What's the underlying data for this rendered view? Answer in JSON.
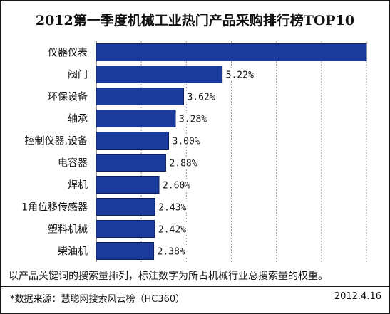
{
  "chart_data": {
    "type": "bar",
    "orientation": "horizontal",
    "title": "2012第一季度机械工业热门产品采购排行榜TOP10",
    "categories": [
      "仪器仪表",
      "阀门",
      "环保设备",
      "轴承",
      "控制仪器,设备",
      "电容器",
      "焊机",
      "1角位移传感器",
      "塑料机械",
      "柴油机"
    ],
    "values": [
      11.2,
      5.22,
      3.62,
      3.28,
      3.0,
      2.88,
      2.6,
      2.43,
      2.42,
      2.38
    ],
    "value_labels": [
      "",
      "5.22%",
      "3.62%",
      "3.28%",
      "3.00%",
      "2.88%",
      "2.60%",
      "2.43%",
      "2.42%",
      "2.38%"
    ],
    "xlim": [
      0,
      11.2
    ],
    "grid": "vertical dashed",
    "colors": {
      "bar": "#1a3a9c",
      "bar_edge": "#0b1f5e"
    }
  },
  "footer": {
    "note": "以产品关键词的搜索量排列，标注数字为所占机械行业总搜索量的权重。",
    "source": "*数据来源：慧聪网搜索风云榜（HC360）",
    "date": "2012.4.16"
  }
}
